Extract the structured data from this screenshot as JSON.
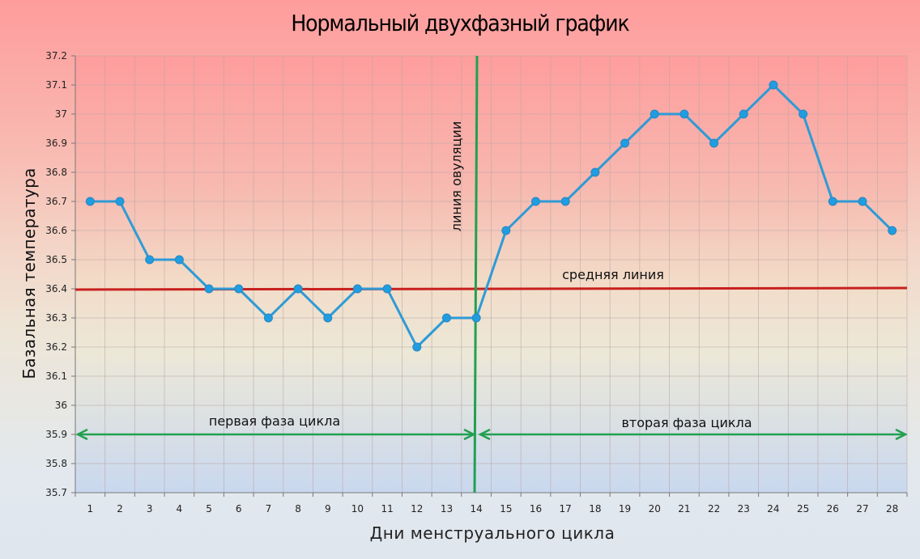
{
  "chart_data": {
    "type": "line",
    "title": "Нормальный двухфазный график",
    "xlabel": "Дни менструального цикла",
    "ylabel": "Базальная температура",
    "categories": [
      1,
      2,
      3,
      4,
      5,
      6,
      7,
      8,
      9,
      10,
      11,
      12,
      13,
      14,
      15,
      16,
      17,
      18,
      19,
      20,
      21,
      22,
      23,
      24,
      25,
      26,
      27,
      28
    ],
    "series": [
      {
        "name": "Базальная температура",
        "color": "#2e9bd6",
        "values": [
          36.7,
          36.7,
          36.5,
          36.5,
          36.4,
          36.4,
          36.3,
          36.4,
          36.3,
          36.4,
          36.4,
          36.2,
          36.3,
          36.3,
          36.6,
          36.7,
          36.7,
          36.8,
          36.9,
          37.0,
          37.0,
          36.9,
          37.0,
          37.1,
          37.0,
          36.7,
          36.7,
          36.6
        ]
      }
    ],
    "ylim": [
      35.7,
      37.2
    ],
    "yticks": [
      "37.2",
      "37.1",
      "37",
      "36.9",
      "36.8",
      "36.7",
      "36.6",
      "36.5",
      "36.4",
      "36.3",
      "36.2",
      "36.1",
      "36",
      "35.9",
      "35.8",
      "35.7"
    ],
    "grid": true,
    "legend": null,
    "annotations": {
      "mean_line": {
        "label": "средняя линия",
        "value": 36.4,
        "color": "#c8201e"
      },
      "ovulation_line": {
        "label": "линия овуляции",
        "day": 14,
        "color": "#22a050"
      },
      "phase1": {
        "label": "первая фаза цикла",
        "from_day": 1,
        "to_day": 14,
        "y": 35.9,
        "color": "#22a050"
      },
      "phase2": {
        "label": "вторая фаза цикла",
        "from_day": 14,
        "to_day": 28,
        "y": 35.9,
        "color": "#22a050"
      }
    }
  }
}
